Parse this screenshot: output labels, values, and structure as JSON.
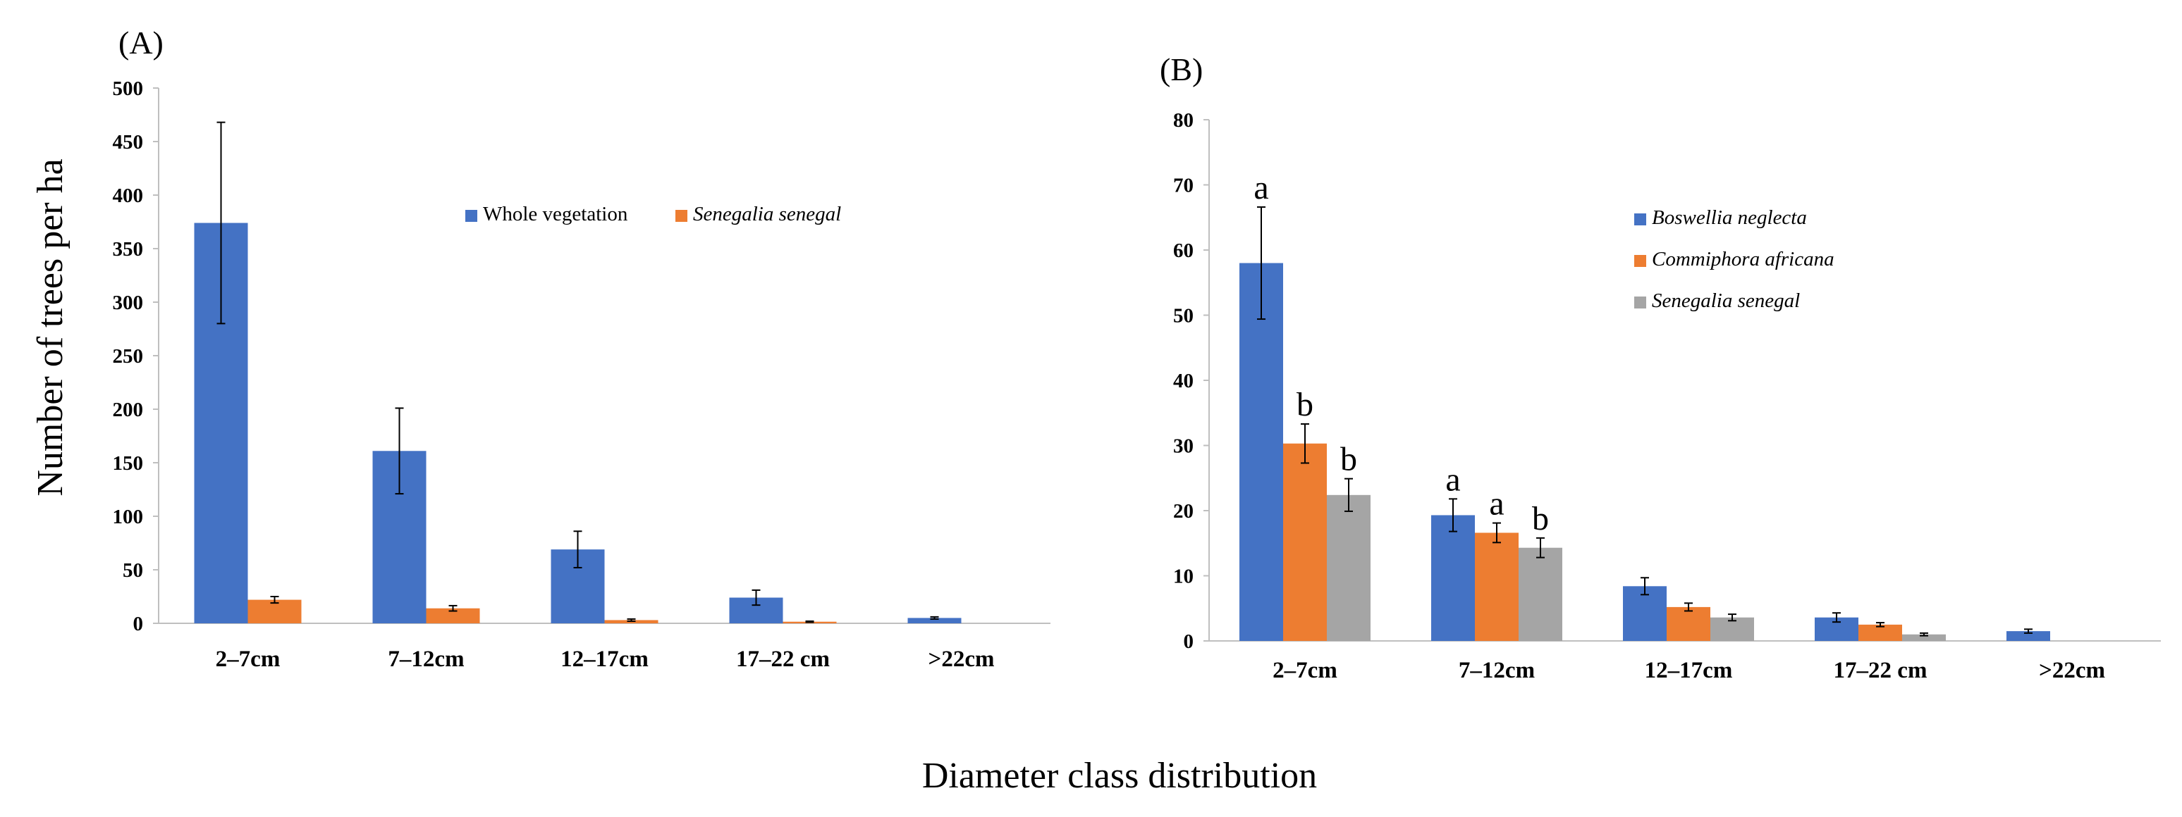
{
  "figure": {
    "ylabel": "Number of trees per ha",
    "xlabel": "Diameter class distribution"
  },
  "colors": {
    "blue": "#4472C4",
    "orange": "#ED7D31",
    "gray": "#A5A5A5"
  },
  "chart_data": [
    {
      "type": "bar",
      "title": "(A)",
      "ylabel": "Number of trees per ha",
      "xlabel": "Diameter class distribution",
      "ylim": [
        0,
        500
      ],
      "yticks": [
        0,
        50,
        100,
        150,
        200,
        250,
        300,
        350,
        400,
        450,
        500
      ],
      "categories": [
        "2–7cm",
        "7–12cm",
        "12–17cm",
        "17–22 cm",
        ">22cm"
      ],
      "legend_position": "top-right",
      "series": [
        {
          "name": "Whole vegetation",
          "italic": false,
          "color": "#4472C4",
          "values": [
            374,
            161,
            69,
            24,
            5
          ],
          "errors": [
            94,
            40,
            17,
            7,
            1
          ]
        },
        {
          "name": "Senegalia senegal",
          "italic": true,
          "color": "#ED7D31",
          "values": [
            22,
            14,
            3,
            1.5,
            null
          ],
          "errors": [
            3,
            2.5,
            1,
            0.5,
            null
          ]
        }
      ]
    },
    {
      "type": "bar",
      "title": "(B)",
      "xlabel": "Diameter class distribution",
      "ylim": [
        0,
        80
      ],
      "yticks": [
        0,
        10,
        20,
        30,
        40,
        50,
        60,
        70,
        80
      ],
      "categories": [
        "2–7cm",
        "7–12cm",
        "12–17cm",
        "17–22 cm",
        ">22cm"
      ],
      "legend_position": "top-right",
      "series": [
        {
          "name": "Boswellia neglecta",
          "italic": true,
          "color": "#4472C4",
          "values": [
            58,
            19.3,
            8.4,
            3.6,
            1.5
          ],
          "errors": [
            8.6,
            2.5,
            1.3,
            0.7,
            0.3
          ],
          "labels": [
            "a",
            "a",
            null,
            null,
            null
          ]
        },
        {
          "name": "Commiphora africana",
          "italic": true,
          "color": "#ED7D31",
          "values": [
            30.3,
            16.6,
            5.2,
            2.5,
            null
          ],
          "errors": [
            3,
            1.5,
            0.6,
            0.3,
            null
          ],
          "labels": [
            "b",
            "a",
            null,
            null,
            null
          ]
        },
        {
          "name": "Senegalia senegal",
          "italic": true,
          "color": "#A5A5A5",
          "values": [
            22.4,
            14.3,
            3.6,
            1,
            null
          ],
          "errors": [
            2.5,
            1.5,
            0.5,
            0.2,
            null
          ],
          "labels": [
            "b",
            "b",
            null,
            null,
            null
          ]
        }
      ]
    }
  ]
}
